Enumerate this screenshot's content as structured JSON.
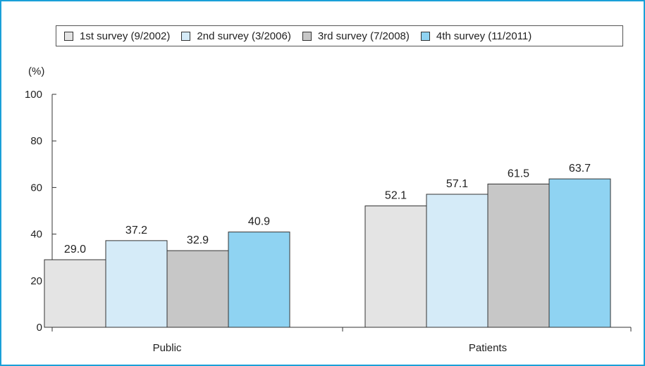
{
  "chart_data": {
    "type": "bar",
    "ylabel": "(%)",
    "ylim": [
      0,
      100
    ],
    "yticks": [
      "0",
      "20",
      "40",
      "60",
      "80",
      "100"
    ],
    "categories": [
      "Public",
      "Patients"
    ],
    "legend_position": "top",
    "grid": false,
    "series": [
      {
        "name": "1st survey (9/2002)",
        "values": [
          29.0,
          52.1
        ],
        "labels": [
          "29.0",
          "52.1"
        ],
        "color": "#e4e4e4"
      },
      {
        "name": "2nd survey (3/2006)",
        "values": [
          37.2,
          57.1
        ],
        "labels": [
          "37.2",
          "57.1"
        ],
        "color": "#d5ebf8"
      },
      {
        "name": "3rd survey (7/2008)",
        "values": [
          32.9,
          61.5
        ],
        "labels": [
          "32.9",
          "61.5"
        ],
        "color": "#c7c7c7"
      },
      {
        "name": "4th survey (11/2011)",
        "values": [
          40.9,
          63.7
        ],
        "labels": [
          "40.9",
          "63.7"
        ],
        "color": "#8fd3f2"
      }
    ]
  },
  "colors": {
    "frame": "#1aa0d8",
    "axis": "#333333",
    "bar_stroke": "#333333"
  }
}
